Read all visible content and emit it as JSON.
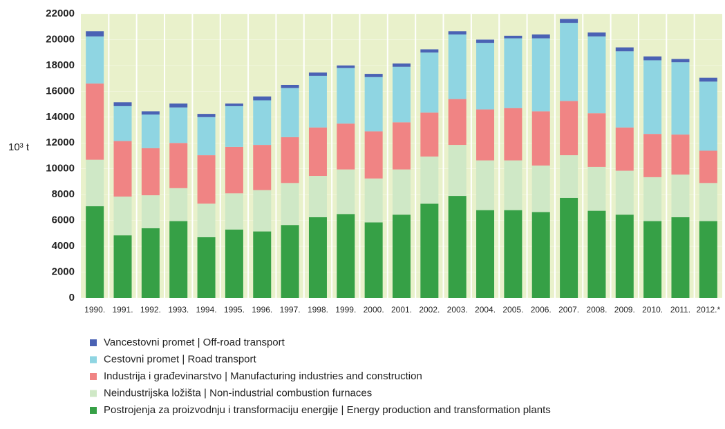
{
  "chart_data": {
    "type": "stacked_bar",
    "y_label": "10³ t",
    "categories": [
      "1990.",
      "1991.",
      "1992.",
      "1993.",
      "1994.",
      "1995.",
      "1996.",
      "1997.",
      "1998.",
      "1999.",
      "2000.",
      "2001.",
      "2002.",
      "2003.",
      "2004.",
      "2005.",
      "2006.",
      "2007.",
      "2008.",
      "2009.",
      "2010.",
      "2011.",
      "2012.*"
    ],
    "series": [
      {
        "name": "Postrojenja za proizvodnju i transformaciju energije | Energy production and transformation plants",
        "color": "#36a046",
        "values": [
          7100,
          4850,
          5400,
          5950,
          4700,
          5300,
          5150,
          5650,
          6250,
          6500,
          5850,
          6450,
          7300,
          7900,
          6800,
          6800,
          6650,
          7750,
          6750,
          6450,
          5950,
          6250,
          5950
        ]
      },
      {
        "name": "Neindustrijska ložišta | Non-industrial combustion furnaces",
        "color": "#cfe8c6",
        "values": [
          3600,
          3000,
          2550,
          2550,
          2600,
          2800,
          3200,
          3250,
          3200,
          3450,
          3400,
          3500,
          3650,
          3950,
          3850,
          3850,
          3600,
          3300,
          3400,
          3400,
          3400,
          3300,
          2950
        ]
      },
      {
        "name": "Industrija i građevinarstvo | Manufacturing industries and construction",
        "color": "#f08484",
        "values": [
          5900,
          4300,
          3650,
          3500,
          3750,
          3600,
          3500,
          3550,
          3750,
          3550,
          3650,
          3650,
          3400,
          3550,
          3950,
          4050,
          4200,
          4200,
          4150,
          3350,
          3350,
          3100,
          2500
        ]
      },
      {
        "name": "Cestovni promet | Road transport",
        "color": "#8fd5e2",
        "values": [
          3650,
          2700,
          2600,
          2750,
          2950,
          3150,
          3450,
          3800,
          4000,
          4300,
          4200,
          4300,
          4650,
          5000,
          5150,
          5400,
          5650,
          6050,
          5950,
          5900,
          5700,
          5600,
          5350
        ]
      },
      {
        "name": "Vancestovni promet | Off-road transport",
        "color": "#4a62b4",
        "values": [
          400,
          300,
          250,
          300,
          250,
          200,
          300,
          250,
          250,
          200,
          250,
          250,
          250,
          250,
          250,
          200,
          300,
          300,
          300,
          300,
          300,
          250,
          300
        ]
      }
    ],
    "ylim": [
      0,
      22000
    ],
    "yticks": [
      0,
      2000,
      4000,
      6000,
      8000,
      10000,
      12000,
      14000,
      16000,
      18000,
      20000,
      22000
    ],
    "grid": true
  }
}
